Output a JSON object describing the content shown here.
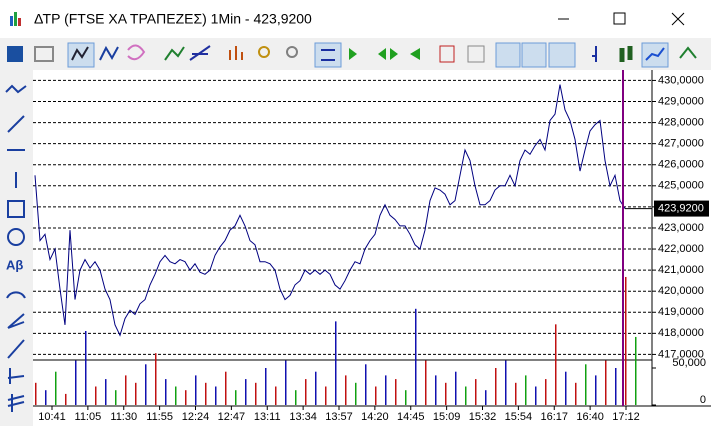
{
  "window": {
    "title": "ΔΤΡ (FTSE ΧΑ ΤΡΑΠΕΖΕΣ) 1Min - 423,9200"
  },
  "toolbar": {
    "text_tool": "Aβ"
  },
  "chart_data": [
    {
      "type": "line",
      "name": "price",
      "color": "#000080",
      "values": [
        425.5,
        422.4,
        422.7,
        421.5,
        422.0,
        420.1,
        418.4,
        422.9,
        419.6,
        421.0,
        421.5,
        421.1,
        421.4,
        421.0,
        420.1,
        419.6,
        418.4,
        417.9,
        418.7,
        419.1,
        418.9,
        419.4,
        419.6,
        420.3,
        420.8,
        421.4,
        421.7,
        421.4,
        421.3,
        421.5,
        421.4,
        421.0,
        421.3,
        420.9,
        420.8,
        421.0,
        421.7,
        422.1,
        422.4,
        422.9,
        423.1,
        423.6,
        423.1,
        422.4,
        422.2,
        421.4,
        421.4,
        421.3,
        421.0,
        420.1,
        419.6,
        419.8,
        420.3,
        420.5,
        421.0,
        420.8,
        421.0,
        420.8,
        421.0,
        420.8,
        420.3,
        420.1,
        420.5,
        421.0,
        421.4,
        421.3,
        422.0,
        422.4,
        422.7,
        423.6,
        424.1,
        423.6,
        423.4,
        423.1,
        423.1,
        422.7,
        422.2,
        422.0,
        422.9,
        424.3,
        424.9,
        424.8,
        424.6,
        424.1,
        424.3,
        425.5,
        426.7,
        426.2,
        425.0,
        424.1,
        424.1,
        424.3,
        424.8,
        425.0,
        425.0,
        425.5,
        425.0,
        426.2,
        426.7,
        426.5,
        426.9,
        427.2,
        426.7,
        428.1,
        428.4,
        429.8,
        428.6,
        428.1,
        427.2,
        425.7,
        426.7,
        427.6,
        427.9,
        428.1,
        426.2,
        425.0,
        425.5,
        424.3,
        423.92
      ],
      "last": {
        "value": 423.92,
        "label": "423,9200"
      },
      "ylim": [
        414.6,
        430.4
      ],
      "yticks": [
        {
          "value": 430,
          "label": "430,0000"
        },
        {
          "value": 429,
          "label": "429,0000"
        },
        {
          "value": 428,
          "label": "428,0000"
        },
        {
          "value": 427,
          "label": "427,0000"
        },
        {
          "value": 426,
          "label": "426,0000"
        },
        {
          "value": 425,
          "label": "425,0000"
        },
        {
          "value": 424,
          "label": "424,0000"
        },
        {
          "value": 423,
          "label": "423,0000"
        },
        {
          "value": 422,
          "label": "422,0000"
        },
        {
          "value": 421,
          "label": "421,0000"
        },
        {
          "value": 420,
          "label": "420,0000"
        },
        {
          "value": 419,
          "label": "419,0000"
        },
        {
          "value": 418,
          "label": "418,0000"
        },
        {
          "value": 417,
          "label": "417,0000"
        }
      ],
      "xticks": [
        "10:41",
        "11:05",
        "11:30",
        "11:55",
        "12:24",
        "12:47",
        "13:11",
        "13:34",
        "13:57",
        "14:20",
        "14:45",
        "15:09",
        "15:32",
        "15:54",
        "16:17",
        "16:40",
        "17:12"
      ],
      "grid": true
    },
    {
      "type": "bar",
      "name": "volume",
      "values": [
        30000,
        20000,
        45000,
        15000,
        60000,
        100000,
        25000,
        35000,
        20000,
        40000,
        30000,
        55000,
        70000,
        35000,
        25000,
        20000,
        40000,
        30000,
        25000,
        45000,
        20000,
        35000,
        30000,
        50000,
        25000,
        60000,
        20000,
        35000,
        45000,
        25000,
        113000,
        40000,
        30000,
        55000,
        25000,
        40000,
        35000,
        20000,
        130000,
        60000,
        40000,
        30000,
        45000,
        25000,
        35000,
        20000,
        50000,
        60000,
        30000,
        40000,
        25000,
        35000,
        109000,
        45000,
        30000,
        55000,
        40000,
        60000,
        50000,
        173000,
        92000
      ],
      "colors": [
        "#c01010",
        "#1010b0",
        "#10a010",
        "#c01010",
        "#1010b0",
        "#1010b0",
        "#c01010",
        "#1010b0",
        "#10a010",
        "#c01010",
        "#c01010",
        "#1010b0",
        "#c01010",
        "#1010b0",
        "#10a010",
        "#c01010",
        "#1010b0",
        "#c01010",
        "#1010b0",
        "#c01010",
        "#10a010",
        "#1010b0",
        "#c01010",
        "#1010b0",
        "#c01010",
        "#1010b0",
        "#10a010",
        "#c01010",
        "#1010b0",
        "#c01010",
        "#1010b0",
        "#c01010",
        "#10a010",
        "#1010b0",
        "#c01010",
        "#1010b0",
        "#c01010",
        "#10a010",
        "#1010b0",
        "#c01010",
        "#1010b0",
        "#c01010",
        "#1010b0",
        "#10a010",
        "#c01010",
        "#1010b0",
        "#c01010",
        "#1010b0",
        "#c01010",
        "#10a010",
        "#1010b0",
        "#c01010",
        "#c01010",
        "#1010b0",
        "#c01010",
        "#10a010",
        "#1010b0",
        "#c01010",
        "#1010b0",
        "#c01010",
        "#10a010"
      ],
      "ylim": [
        0,
        450000
      ],
      "yticks": [
        {
          "value": 50000,
          "label": "50,000"
        },
        0
      ]
    }
  ]
}
